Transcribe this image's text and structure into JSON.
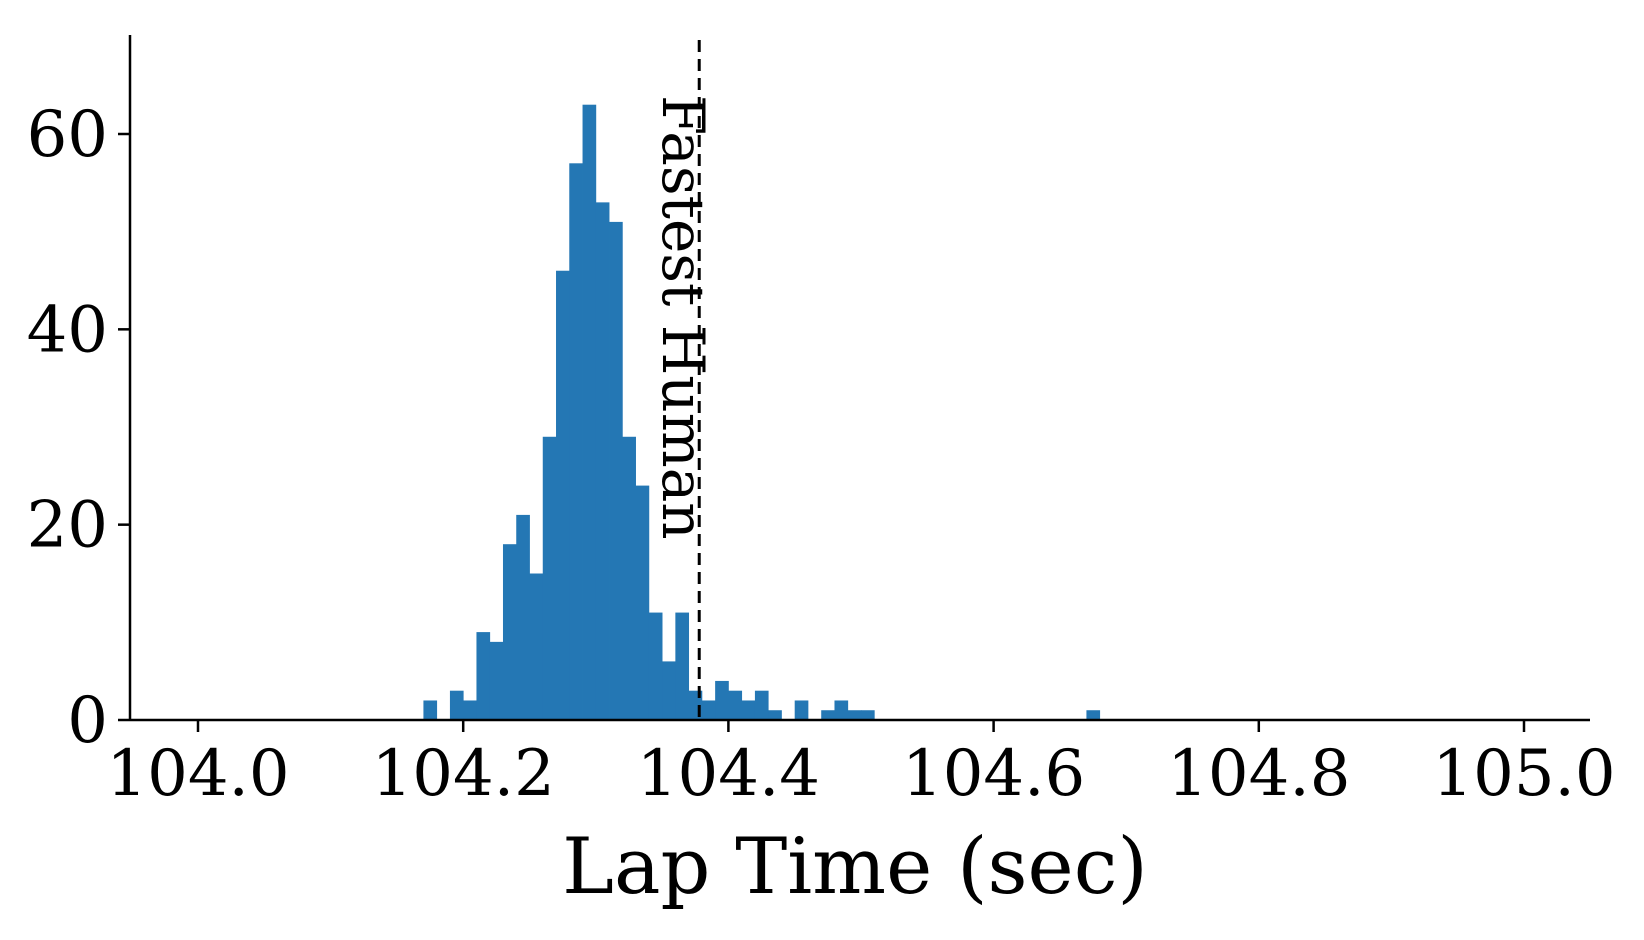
{
  "chart_data": {
    "type": "bar",
    "subtype": "histogram",
    "xlabel": "Lap Time (sec)",
    "ylabel": "",
    "title": "",
    "xlim": [
      103.95,
      105.05
    ],
    "ylim": [
      0,
      70
    ],
    "bin_width": 0.01,
    "x_ticks": [
      104.0,
      104.2,
      104.4,
      104.6,
      104.8,
      105.0
    ],
    "x_tick_labels": [
      "104.0",
      "104.2",
      "104.4",
      "104.6",
      "104.8",
      "105.0"
    ],
    "y_ticks": [
      0,
      20,
      40,
      60
    ],
    "y_tick_labels": [
      "0",
      "20",
      "40",
      "60"
    ],
    "bar_color": "#2477b4",
    "bins": [
      {
        "x": 104.17,
        "count": 2
      },
      {
        "x": 104.19,
        "count": 3
      },
      {
        "x": 104.2,
        "count": 2
      },
      {
        "x": 104.21,
        "count": 9
      },
      {
        "x": 104.22,
        "count": 8
      },
      {
        "x": 104.23,
        "count": 18
      },
      {
        "x": 104.24,
        "count": 21
      },
      {
        "x": 104.25,
        "count": 15
      },
      {
        "x": 104.26,
        "count": 29
      },
      {
        "x": 104.27,
        "count": 46
      },
      {
        "x": 104.28,
        "count": 57
      },
      {
        "x": 104.29,
        "count": 63
      },
      {
        "x": 104.3,
        "count": 53
      },
      {
        "x": 104.31,
        "count": 51
      },
      {
        "x": 104.32,
        "count": 29
      },
      {
        "x": 104.33,
        "count": 24
      },
      {
        "x": 104.34,
        "count": 11
      },
      {
        "x": 104.35,
        "count": 6
      },
      {
        "x": 104.36,
        "count": 11
      },
      {
        "x": 104.37,
        "count": 3
      },
      {
        "x": 104.38,
        "count": 2
      },
      {
        "x": 104.39,
        "count": 4
      },
      {
        "x": 104.4,
        "count": 3
      },
      {
        "x": 104.41,
        "count": 2
      },
      {
        "x": 104.42,
        "count": 3
      },
      {
        "x": 104.43,
        "count": 1
      },
      {
        "x": 104.45,
        "count": 2
      },
      {
        "x": 104.47,
        "count": 1
      },
      {
        "x": 104.48,
        "count": 2
      },
      {
        "x": 104.49,
        "count": 1
      },
      {
        "x": 104.5,
        "count": 1
      },
      {
        "x": 104.67,
        "count": 1
      }
    ],
    "reference_line": {
      "x": 104.378,
      "style": "dashed",
      "color": "#000000",
      "label": "Fastest Human"
    }
  }
}
